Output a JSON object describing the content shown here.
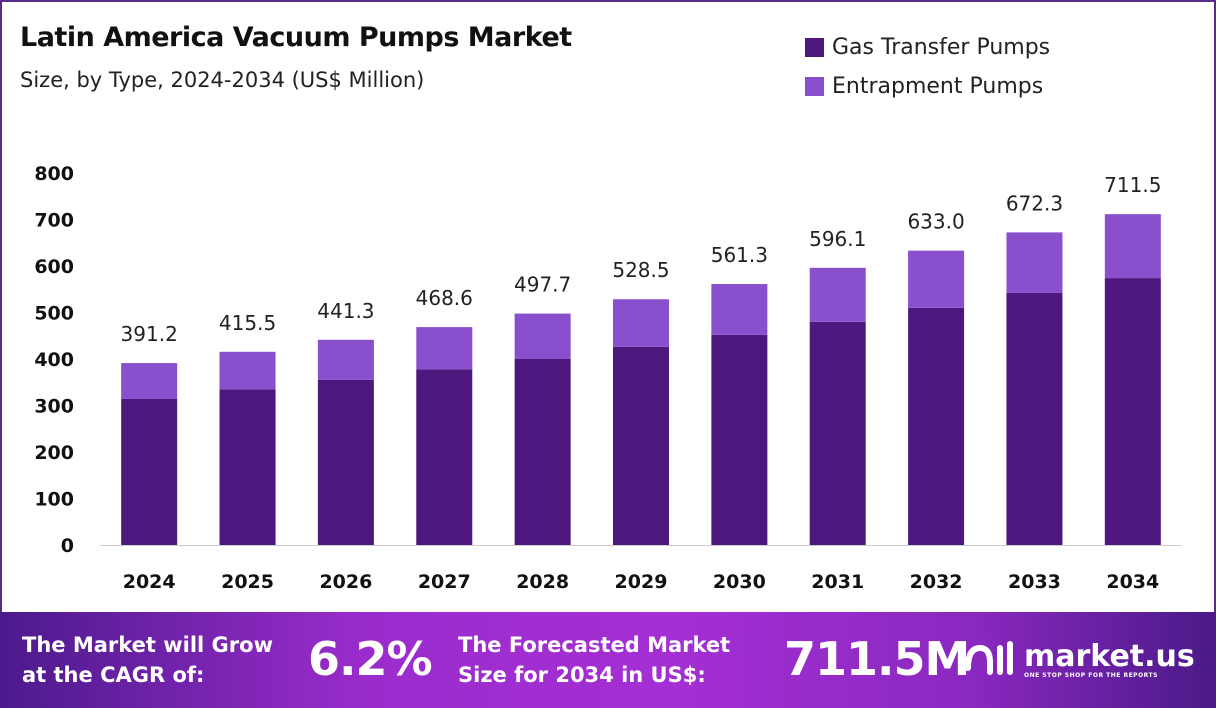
{
  "chart_data": {
    "type": "bar",
    "stacked": true,
    "title": "Latin America Vacuum Pumps Market",
    "subtitle": "Size, by Type, 2024-2034 (US$ Million)",
    "categories": [
      "2024",
      "2025",
      "2026",
      "2027",
      "2028",
      "2029",
      "2030",
      "2031",
      "2032",
      "2033",
      "2034"
    ],
    "series": [
      {
        "name": "Gas Transfer Pumps",
        "color": "#4e177e",
        "values": [
          314,
          335,
          355,
          378,
          400,
          426,
          452,
          480,
          510,
          542,
          574
        ]
      },
      {
        "name": "Entrapment Pumps",
        "color": "#8a4fcd",
        "values": [
          77.2,
          80.5,
          86.3,
          90.6,
          97.7,
          102.5,
          109.3,
          116.1,
          123.0,
          130.3,
          137.5
        ]
      }
    ],
    "totals": [
      "391.2",
      "415.5",
      "441.3",
      "468.6",
      "497.7",
      "528.5",
      "561.3",
      "596.1",
      "633.0",
      "672.3",
      "711.5"
    ],
    "yticks": [
      "0",
      "100",
      "200",
      "300",
      "400",
      "500",
      "600",
      "700",
      "800"
    ],
    "ylim": [
      0,
      800
    ],
    "grid": false,
    "legend_position": "top-right"
  },
  "banner": {
    "cagr_label_1": "The Market will Grow",
    "cagr_label_2": "at the CAGR of:",
    "cagr_value": "6.2%",
    "forecast_label_1": "The Forecasted Market",
    "forecast_label_2": "Size for 2034 in US$:",
    "forecast_value": "711.5M",
    "logo_name": "market.us",
    "logo_tagline": "ONE STOP SHOP FOR THE REPORTS"
  }
}
